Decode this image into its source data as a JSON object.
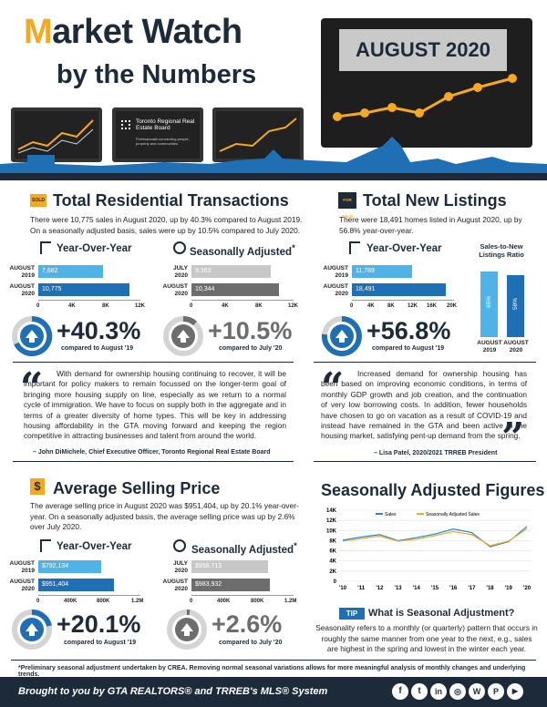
{
  "header": {
    "title_m": "M",
    "title_rest": "arket Watch",
    "subtitle": "by the Numbers",
    "month": "AUGUST 2020",
    "trreb_name": "Toronto Regional Real Estate Board",
    "trreb_tag": "Professionals connecting people, property and communities."
  },
  "transactions": {
    "title": "Total Residential Transactions",
    "sign": "SOLD",
    "body": "There were 10,775 sales in August 2020, up by 40.3% compared to August 2019. On a seasonally adjusted basis, sales were up by 10.5% compared to July 2020.",
    "yoy": {
      "label": "Year-Over-Year",
      "rows": [
        {
          "l1": "AUGUST",
          "l2": "2019",
          "value": "7,682"
        },
        {
          "l1": "AUGUST",
          "l2": "2020",
          "value": "10,775"
        }
      ],
      "ticks": [
        "0",
        "4K",
        "8K",
        "12K"
      ],
      "pct": "+40.3%",
      "cmp": "compared to August '19"
    },
    "sa": {
      "label": "Seasonally Adjusted",
      "star": "*",
      "rows": [
        {
          "l1": "JULY",
          "l2": "2020",
          "value": "9,363"
        },
        {
          "l1": "AUGUST",
          "l2": "2020",
          "value": "10,344"
        }
      ],
      "ticks": [
        "0",
        "4K",
        "8K",
        "12K"
      ],
      "pct": "+10.5%",
      "cmp": "compared to July '20"
    }
  },
  "listings": {
    "title": "Total New Listings",
    "sign": "FOR SALE",
    "body": "There were 18,491 homes listed in August 2020, up by 56.8% year-over-year.",
    "yoy": {
      "label": "Year-Over-Year",
      "rows": [
        {
          "l1": "AUGUST",
          "l2": "2019",
          "value": "11,789"
        },
        {
          "l1": "AUGUST",
          "l2": "2020",
          "value": "18,491"
        }
      ],
      "ticks": [
        "0",
        "4K",
        "8K",
        "12K",
        "16K",
        "20K"
      ],
      "pct": "+56.8%",
      "cmp": "compared to August '19"
    },
    "ratio": {
      "title": "Sales-to-New Listings Ratio",
      "bars": [
        {
          "pct": "65%",
          "l1": "AUGUST",
          "l2": "2019",
          "value": 65
        },
        {
          "pct": "58%",
          "l1": "AUGUST",
          "l2": "2020",
          "value": 58
        }
      ]
    }
  },
  "quote1": {
    "text": "With demand for ownership housing continuing to recover, it will be important for policy makers to remain focussed on the longer-term goal of bringing more housing supply on line, especially as we return to a normal cycle of immigration. We have to focus on supply both in the aggregate and in terms of a greater diversity of home types. This will be key in addressing housing affordability in the GTA moving forward and keeping the region competitive in attracting businesses and talent from around the world.",
    "attr": "– John DiMichele, Chief Executive Officer, Toronto Regional Real Estate Board"
  },
  "quote2": {
    "text": "Increased demand for ownership housing has been based on improving economic conditions, in terms of monthly GDP growth and job creation, and the continuation of very low borrowing costs. In addition, fewer households have chosen to go on vacation as a result of COVID-19 and instead have remained in the GTA and been active in the housing market, satisfying pent-up demand from the spring.",
    "attr": "– Lisa Patel, 2020/2021 TRREB President"
  },
  "price": {
    "title": "Average Selling Price",
    "body": "The average selling price in August 2020 was $951,404, up by 20.1% year-over-year. On a seasonally adjusted basis, the average selling price was up by 2.6% over July 2020.",
    "yoy": {
      "label": "Year-Over-Year",
      "rows": [
        {
          "l1": "AUGUST",
          "l2": "2019",
          "value": "$792,134"
        },
        {
          "l1": "AUGUST",
          "l2": "2020",
          "value": "$951,404"
        }
      ],
      "ticks": [
        "0",
        "400K",
        "800K",
        "1.2M"
      ],
      "pct": "+20.1%",
      "cmp": "compared to August '19"
    },
    "sa": {
      "label": "Seasonally Adjusted",
      "star": "*",
      "rows": [
        {
          "l1": "JULY",
          "l2": "2020",
          "value": "$958,713"
        },
        {
          "l1": "AUGUST",
          "l2": "2020",
          "value": "$983,932"
        }
      ],
      "ticks": [
        "0",
        "400K",
        "800K",
        "1.2M"
      ],
      "pct": "+2.6%",
      "cmp": "compared to July '20"
    }
  },
  "seasonal": {
    "title": "Seasonally Adjusted Figures",
    "tip": "TIP",
    "tip_title": "What is Seasonal Adjustment?",
    "tip_body": "Seasonality refers to a monthly (or quarterly) pattern that occurs in roughly the same manner from one year to the next, e.g., sales are highest in the spring and lowest in the winter each year."
  },
  "chart_data": {
    "type": "line",
    "x": [
      "'10",
      "'11",
      "'12",
      "'13",
      "'14",
      "'15",
      "'16",
      "'17",
      "'18",
      "'19",
      "'20"
    ],
    "ylim": [
      0,
      14000
    ],
    "yticks": [
      "0",
      "2K",
      "4K",
      "6K",
      "8K",
      "10K",
      "12K",
      "14K"
    ],
    "legend": "top",
    "series": [
      {
        "name": "Sales",
        "color": "#1f8ad0",
        "values": [
          8100,
          8700,
          9200,
          8000,
          8600,
          9300,
          10300,
          9600,
          6800,
          7800,
          10775
        ]
      },
      {
        "name": "Seasonally Adjusted Sales",
        "color": "#f7a823",
        "values": [
          7900,
          8400,
          8900,
          7900,
          8300,
          9000,
          9800,
          9200,
          7000,
          7900,
          10344
        ]
      }
    ]
  },
  "footnote": "*Preliminary seasonal adjustment undertaken by CREA. Removing normal seasonal variations allows for more meaningful analysis of monthly changes and underlying trends.",
  "footer": {
    "text": "Brought to you by GTA REALTORS® and TRREB's MLS® System"
  }
}
